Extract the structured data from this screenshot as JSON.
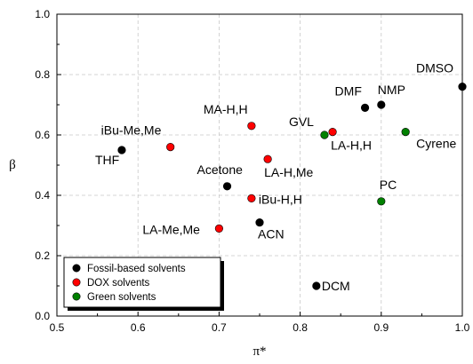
{
  "chart_data": {
    "type": "scatter",
    "xlabel": "π*",
    "ylabel": "β",
    "xlim": [
      0.5,
      1.0
    ],
    "ylim": [
      0.0,
      1.0
    ],
    "x_ticks": [
      "0.5",
      "0.6",
      "0.7",
      "0.8",
      "0.9",
      "1.0"
    ],
    "y_ticks": [
      "0.0",
      "0.2",
      "0.4",
      "0.6",
      "0.8",
      "1.0"
    ],
    "grid": true,
    "legend_position": "bottom-left",
    "series": [
      {
        "name": "Fossil-based solvents",
        "color": "#000000",
        "points": [
          {
            "label": "THF",
            "x": 0.58,
            "y": 0.55
          },
          {
            "label": "Acetone",
            "x": 0.71,
            "y": 0.43
          },
          {
            "label": "ACN",
            "x": 0.75,
            "y": 0.31
          },
          {
            "label": "DCM",
            "x": 0.82,
            "y": 0.1
          },
          {
            "label": "DMF",
            "x": 0.88,
            "y": 0.69
          },
          {
            "label": "NMP",
            "x": 0.9,
            "y": 0.7
          },
          {
            "label": "DMSO",
            "x": 1.0,
            "y": 0.76
          }
        ]
      },
      {
        "name": "DOX solvents",
        "color": "#ff0000",
        "points": [
          {
            "label": "iBu-Me,Me",
            "x": 0.64,
            "y": 0.56
          },
          {
            "label": "LA-Me,Me",
            "x": 0.7,
            "y": 0.29
          },
          {
            "label": "MA-H,H",
            "x": 0.74,
            "y": 0.63
          },
          {
            "label": "iBu-H,H",
            "x": 0.74,
            "y": 0.39
          },
          {
            "label": "LA-H,Me",
            "x": 0.76,
            "y": 0.52
          },
          {
            "label": "LA-H,H",
            "x": 0.84,
            "y": 0.61
          }
        ]
      },
      {
        "name": "Green solvents",
        "color": "#008000",
        "points": [
          {
            "label": "GVL",
            "x": 0.83,
            "y": 0.6
          },
          {
            "label": "Cyrene",
            "x": 0.93,
            "y": 0.61
          },
          {
            "label": "PC",
            "x": 0.9,
            "y": 0.38
          }
        ]
      }
    ]
  }
}
